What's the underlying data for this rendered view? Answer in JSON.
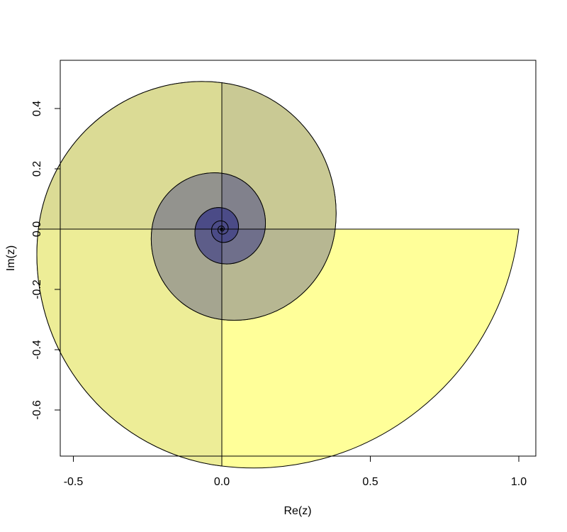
{
  "chart_data": {
    "type": "spiral_tiling",
    "title": "",
    "xlabel": "Re(z)",
    "ylabel": "Im(z)",
    "xlim": [
      -0.55,
      1.055
    ],
    "ylim": [
      -0.755,
      0.565
    ],
    "x_ticks": [
      -0.5,
      0.0,
      0.5,
      1.0
    ],
    "x_tick_labels": [
      "-0.5",
      "0.0",
      "0.5",
      "1.0"
    ],
    "y_ticks": [
      -0.6,
      -0.4,
      -0.2,
      0.0,
      0.2,
      0.4
    ],
    "y_tick_labels": [
      "-0.6",
      "-0.4",
      "-0.2",
      "0.0",
      "0.2",
      "0.4"
    ],
    "grid": false,
    "spiral": {
      "center": [
        0,
        0
      ],
      "ratio_per_quarter_turn": 0.786,
      "tiles": 30
    },
    "fill_colors": {
      "outer": "#FFFF99",
      "inner": "#4B4B87"
    }
  }
}
